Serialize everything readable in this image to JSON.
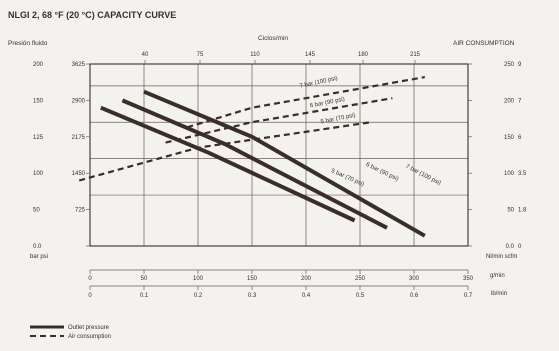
{
  "title": "NLGI 2, 68 °F (20 °C) CAPACITY CURVE",
  "left_axis_title": "Presión fluido",
  "top_axis_title": "Ciclos/min",
  "right_axis_title": "AIR CONSUMPTION",
  "left_units": "bar psi",
  "right_units": "Nl/min scfm",
  "bottom_units_1": "g/min",
  "bottom_units_2": "lb/min",
  "left_ticks": [
    {
      "bar": "200",
      "psi": "3625"
    },
    {
      "bar": "150",
      "psi": "2900"
    },
    {
      "bar": "125",
      "psi": "2175"
    },
    {
      "bar": "100",
      "psi": "1450"
    },
    {
      "bar": "50",
      "psi": "725"
    },
    {
      "bar": "0.0",
      "psi": ""
    }
  ],
  "right_ticks": [
    {
      "nl": "250",
      "scfm": "9"
    },
    {
      "nl": "200",
      "scfm": "7"
    },
    {
      "nl": "150",
      "scfm": "6"
    },
    {
      "nl": "100",
      "scfm": "3.5"
    },
    {
      "nl": "50",
      "scfm": "1.8"
    },
    {
      "nl": "0.0",
      "scfm": "0"
    }
  ],
  "top_ticks": [
    "40",
    "75",
    "110",
    "145",
    "180",
    "215"
  ],
  "gmin_ticks": [
    "0",
    "50",
    "100",
    "150",
    "200",
    "250",
    "300",
    "350"
  ],
  "lbmin_ticks": [
    "0",
    "0.1",
    "0.2",
    "0.3",
    "0.4",
    "0.5",
    "0.6",
    "0.7"
  ],
  "legend": [
    {
      "label": "Outlet pressure",
      "style": "solid"
    },
    {
      "label": "Air consumption",
      "style": "dashed"
    }
  ],
  "chart_data": {
    "type": "line",
    "title": "NLGI 2, 68 °F (20 °C) CAPACITY CURVE",
    "xlabel": "g/min",
    "ylabel": "Presión fluido",
    "y2label": "AIR CONSUMPTION",
    "xlim": [
      0,
      350
    ],
    "ylim": [
      0,
      250
    ],
    "y2lim": [
      0,
      250
    ],
    "grid": true,
    "series": [
      {
        "name": "7 bar (100 psi)",
        "kind": "outlet",
        "label_pos": [
          308,
          96
        ],
        "x": [
          50,
          150,
          310
        ],
        "y": [
          212,
          150,
          14
        ]
      },
      {
        "name": "6 bar (90 psi)",
        "kind": "outlet",
        "label_pos": [
          270,
          100
        ],
        "x": [
          30,
          125,
          275
        ],
        "y": [
          200,
          140,
          25
        ]
      },
      {
        "name": "5 bar (70 psi)",
        "kind": "outlet",
        "label_pos": [
          238,
          92
        ],
        "x": [
          10,
          110,
          245
        ],
        "y": [
          190,
          128,
          35
        ]
      },
      {
        "name": "7 bar (100 psi)",
        "kind": "air",
        "label_pos": [
          212,
          223
        ],
        "x": [
          90,
          150,
          310
        ],
        "y": [
          163,
          190,
          232
        ]
      },
      {
        "name": "6 bar (90 psi)",
        "kind": "air",
        "label_pos": [
          220,
          195
        ],
        "x": [
          70,
          150,
          280
        ],
        "y": [
          142,
          170,
          203
        ]
      },
      {
        "name": "5 bar (70 psi)",
        "kind": "air",
        "label_pos": [
          230,
          173
        ],
        "x": [
          -10,
          100,
          260
        ],
        "y": [
          90,
          135,
          170
        ]
      }
    ]
  }
}
